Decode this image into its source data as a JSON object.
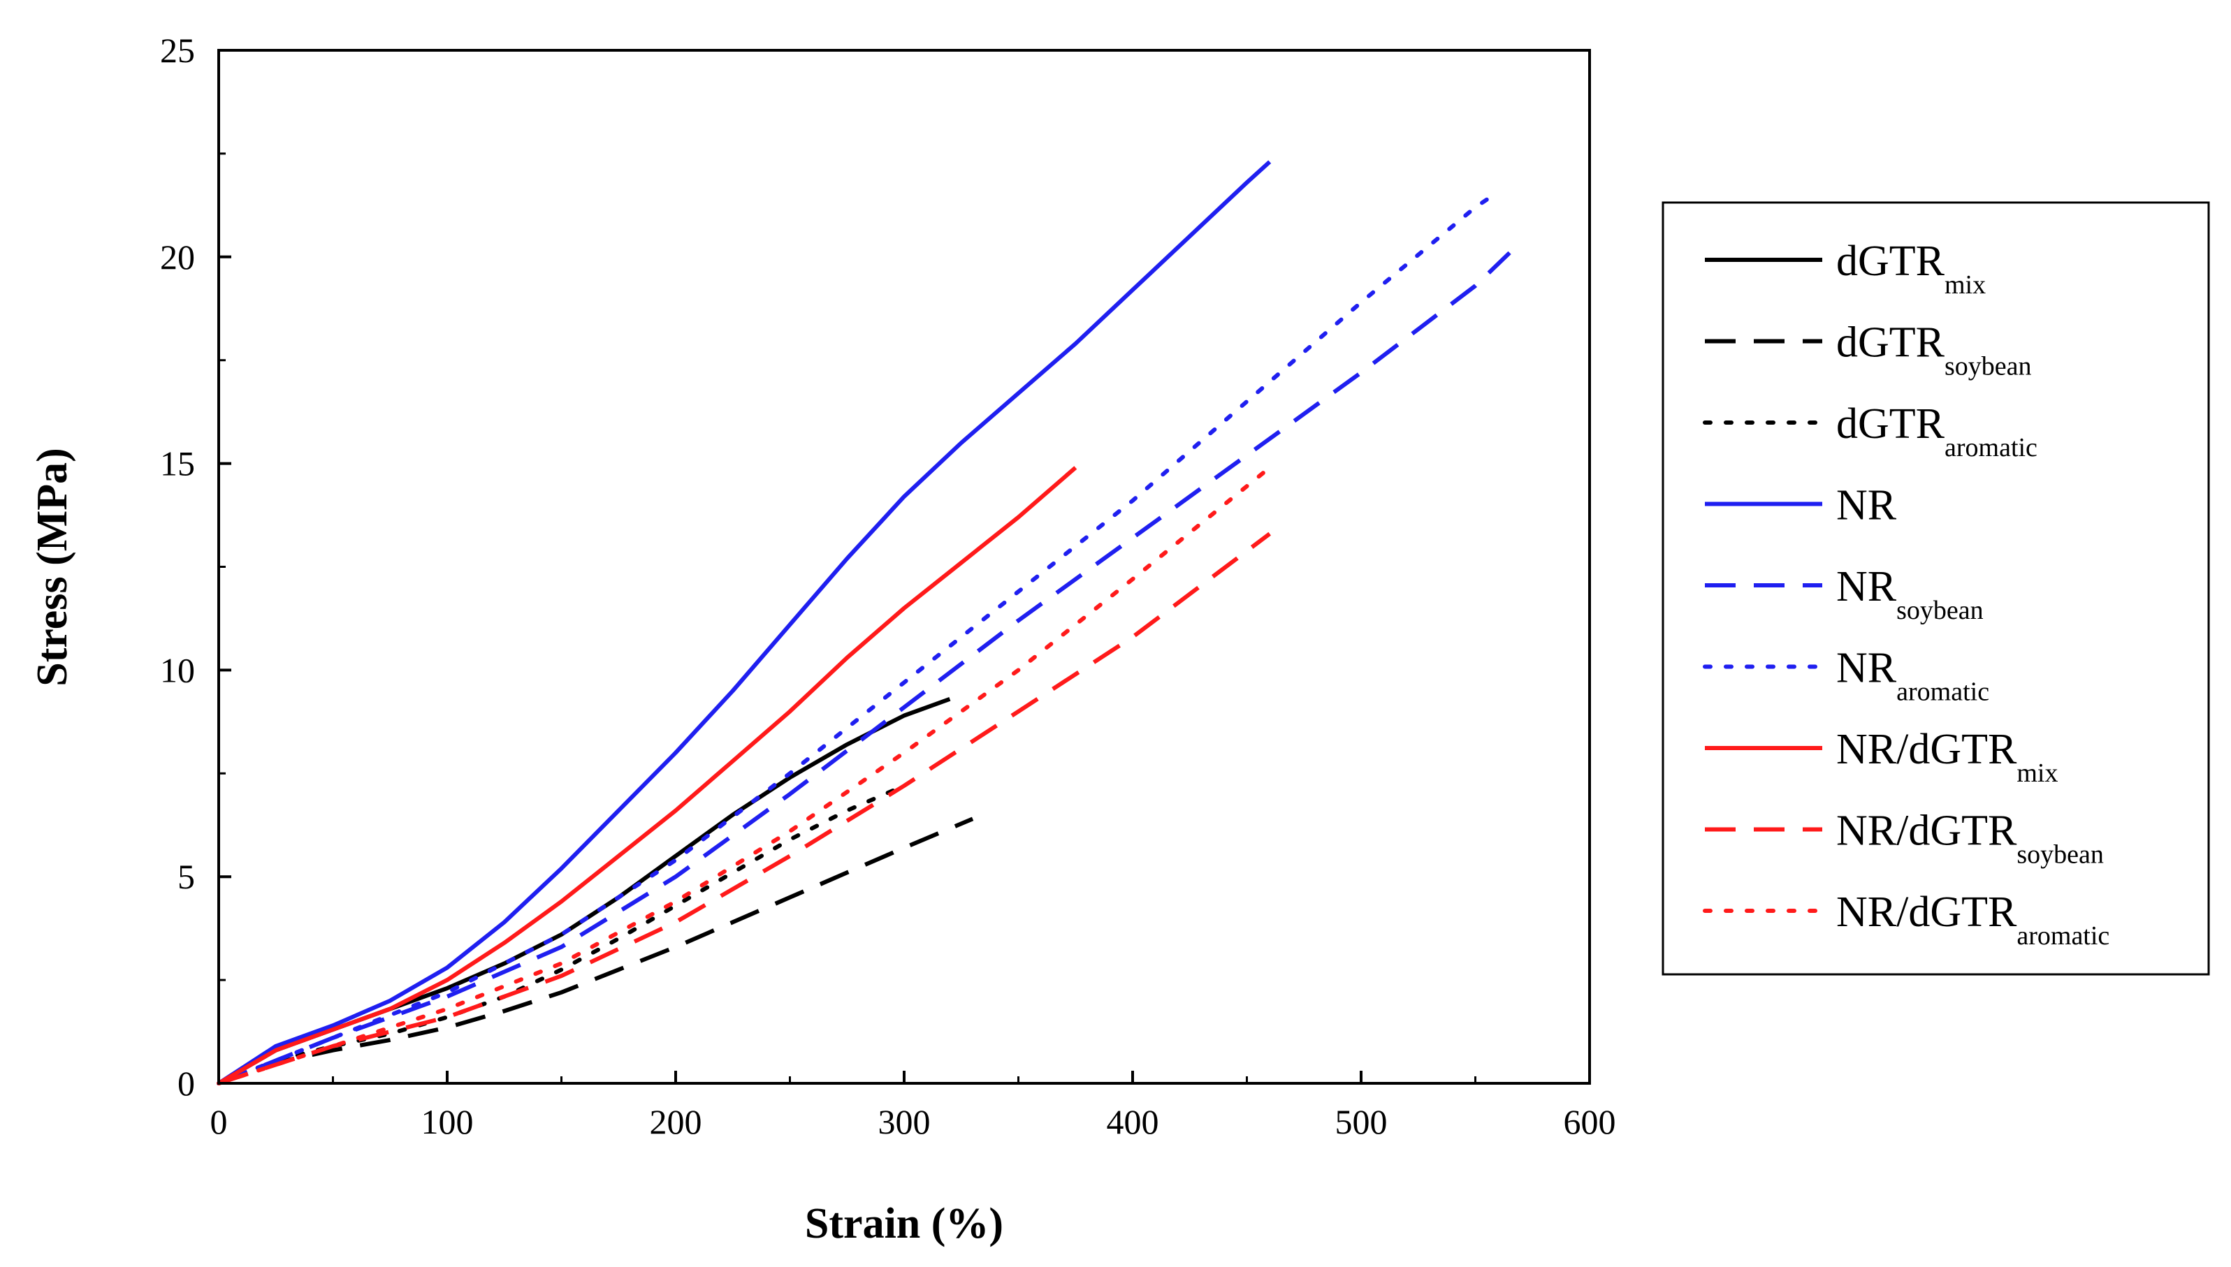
{
  "chart_data": {
    "type": "line",
    "title": "",
    "xlabel": "Strain (%)",
    "ylabel": "Stress (MPa)",
    "xlim": [
      0,
      600
    ],
    "ylim": [
      0,
      25
    ],
    "xticks": [
      "0",
      "100",
      "200",
      "300",
      "400",
      "500",
      "600"
    ],
    "yticks": [
      "0",
      "5",
      "10",
      "15",
      "20",
      "25"
    ],
    "grid": false,
    "legend_position": "right",
    "series": [
      {
        "name": "dGTR",
        "sub": "mix",
        "color": "#000000",
        "style": "solid",
        "x": [
          0,
          25,
          50,
          75,
          100,
          125,
          150,
          175,
          200,
          225,
          250,
          275,
          300,
          320
        ],
        "y": [
          0,
          0.8,
          1.3,
          1.8,
          2.3,
          2.9,
          3.6,
          4.5,
          5.5,
          6.5,
          7.4,
          8.2,
          8.9,
          9.3
        ]
      },
      {
        "name": "dGTR",
        "sub": "soybean",
        "color": "#000000",
        "style": "dashed",
        "x": [
          0,
          25,
          50,
          75,
          100,
          125,
          150,
          175,
          200,
          225,
          250,
          275,
          300,
          330
        ],
        "y": [
          0,
          0.5,
          0.8,
          1.05,
          1.35,
          1.75,
          2.2,
          2.75,
          3.3,
          3.9,
          4.5,
          5.1,
          5.7,
          6.4
        ]
      },
      {
        "name": "dGTR",
        "sub": "aromatic",
        "color": "#000000",
        "style": "dotted",
        "x": [
          0,
          25,
          50,
          75,
          100,
          125,
          150,
          175,
          200,
          225,
          250,
          275,
          300
        ],
        "y": [
          0,
          0.55,
          0.9,
          1.2,
          1.6,
          2.1,
          2.75,
          3.5,
          4.3,
          5.1,
          5.9,
          6.6,
          7.2
        ]
      },
      {
        "name": "NR",
        "sub": "",
        "color": "#1f1ff0",
        "style": "solid",
        "x": [
          0,
          25,
          50,
          75,
          100,
          125,
          150,
          175,
          200,
          225,
          250,
          275,
          300,
          325,
          350,
          375,
          400,
          425,
          450,
          460
        ],
        "y": [
          0,
          0.9,
          1.4,
          2.0,
          2.8,
          3.9,
          5.2,
          6.6,
          8.0,
          9.5,
          11.1,
          12.7,
          14.2,
          15.5,
          16.7,
          17.9,
          19.2,
          20.5,
          21.8,
          22.3
        ]
      },
      {
        "name": "NR",
        "sub": "soybean",
        "color": "#1f1ff0",
        "style": "dashed",
        "x": [
          0,
          50,
          100,
          150,
          200,
          250,
          300,
          350,
          400,
          450,
          500,
          550,
          565
        ],
        "y": [
          0,
          1.1,
          2.1,
          3.3,
          5.0,
          7.0,
          9.1,
          11.2,
          13.2,
          15.2,
          17.2,
          19.3,
          20.1
        ]
      },
      {
        "name": "NR",
        "sub": "aromatic",
        "color": "#1f1ff0",
        "style": "dotted",
        "x": [
          0,
          50,
          100,
          150,
          200,
          250,
          300,
          350,
          400,
          450,
          500,
          550,
          558
        ],
        "y": [
          0,
          1.1,
          2.2,
          3.6,
          5.4,
          7.5,
          9.7,
          11.9,
          14.1,
          16.5,
          18.9,
          21.2,
          21.5
        ]
      },
      {
        "name": "NR/dGTR",
        "sub": "mix",
        "color": "#ff1a1a",
        "style": "solid",
        "x": [
          0,
          25,
          50,
          75,
          100,
          125,
          150,
          175,
          200,
          225,
          250,
          275,
          300,
          325,
          350,
          375
        ],
        "y": [
          0,
          0.8,
          1.3,
          1.8,
          2.5,
          3.4,
          4.4,
          5.5,
          6.6,
          7.8,
          9.0,
          10.3,
          11.5,
          12.6,
          13.7,
          14.9
        ]
      },
      {
        "name": "NR/dGTR",
        "sub": "soybean",
        "color": "#ff1a1a",
        "style": "dashed",
        "x": [
          0,
          50,
          100,
          150,
          200,
          250,
          300,
          350,
          400,
          460
        ],
        "y": [
          0,
          0.9,
          1.6,
          2.6,
          3.9,
          5.5,
          7.2,
          9.0,
          10.8,
          13.3
        ]
      },
      {
        "name": "NR/dGTR",
        "sub": "aromatic",
        "color": "#ff1a1a",
        "style": "dotted",
        "x": [
          0,
          50,
          100,
          150,
          200,
          250,
          300,
          350,
          400,
          460
        ],
        "y": [
          0,
          0.9,
          1.8,
          2.9,
          4.4,
          6.1,
          8.0,
          10.0,
          12.2,
          14.9
        ]
      }
    ]
  }
}
